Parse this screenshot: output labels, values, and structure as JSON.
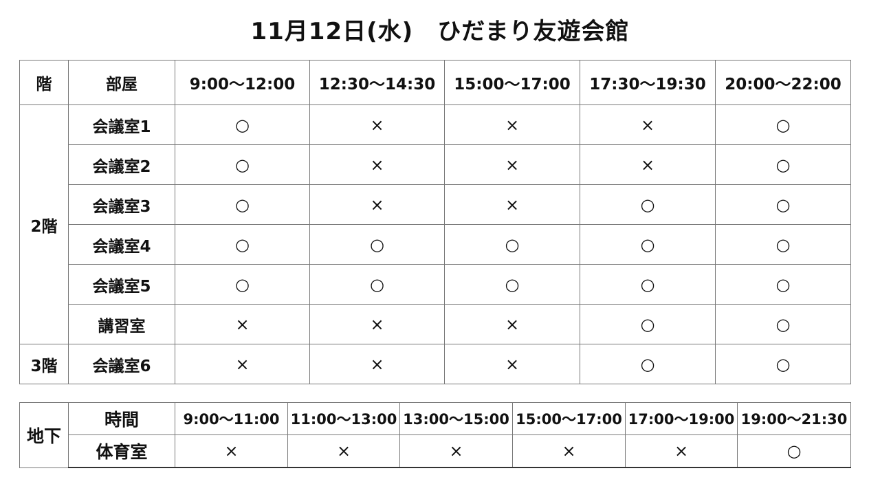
{
  "title": "11月12日(水)　ひだまり友遊会館",
  "main_table": {
    "headers": [
      "階",
      "部屋",
      "9:00～12:00",
      "12:30～14:30",
      "15:00～17:00",
      "17:30～19:30",
      "20:00～22:00"
    ],
    "floors": [
      {
        "label": "2階",
        "rooms": [
          {
            "name": "会議室1",
            "slots": [
              "○",
              "×",
              "×",
              "×",
              "○"
            ]
          },
          {
            "name": "会議室2",
            "slots": [
              "○",
              "×",
              "×",
              "×",
              "○"
            ]
          },
          {
            "name": "会議室3",
            "slots": [
              "○",
              "×",
              "×",
              "○",
              "○"
            ]
          },
          {
            "name": "会議室4",
            "slots": [
              "○",
              "○",
              "○",
              "○",
              "○"
            ]
          },
          {
            "name": "会議室5",
            "slots": [
              "○",
              "○",
              "○",
              "○",
              "○"
            ]
          },
          {
            "name": "講習室",
            "slots": [
              "×",
              "×",
              "×",
              "○",
              "○"
            ]
          }
        ]
      },
      {
        "label": "3階",
        "rooms": [
          {
            "name": "会議室6",
            "slots": [
              "×",
              "×",
              "×",
              "○",
              "○"
            ]
          }
        ]
      }
    ]
  },
  "basement_table": {
    "floor_label": "地下",
    "time_label": "時間",
    "times": [
      "9:00～11:00",
      "11:00～13:00",
      "13:00～15:00",
      "15:00～17:00",
      "17:00～19:00",
      "19:00～21:30"
    ],
    "room": {
      "name": "体育室",
      "slots": [
        "×",
        "×",
        "×",
        "×",
        "×",
        "○"
      ]
    }
  }
}
